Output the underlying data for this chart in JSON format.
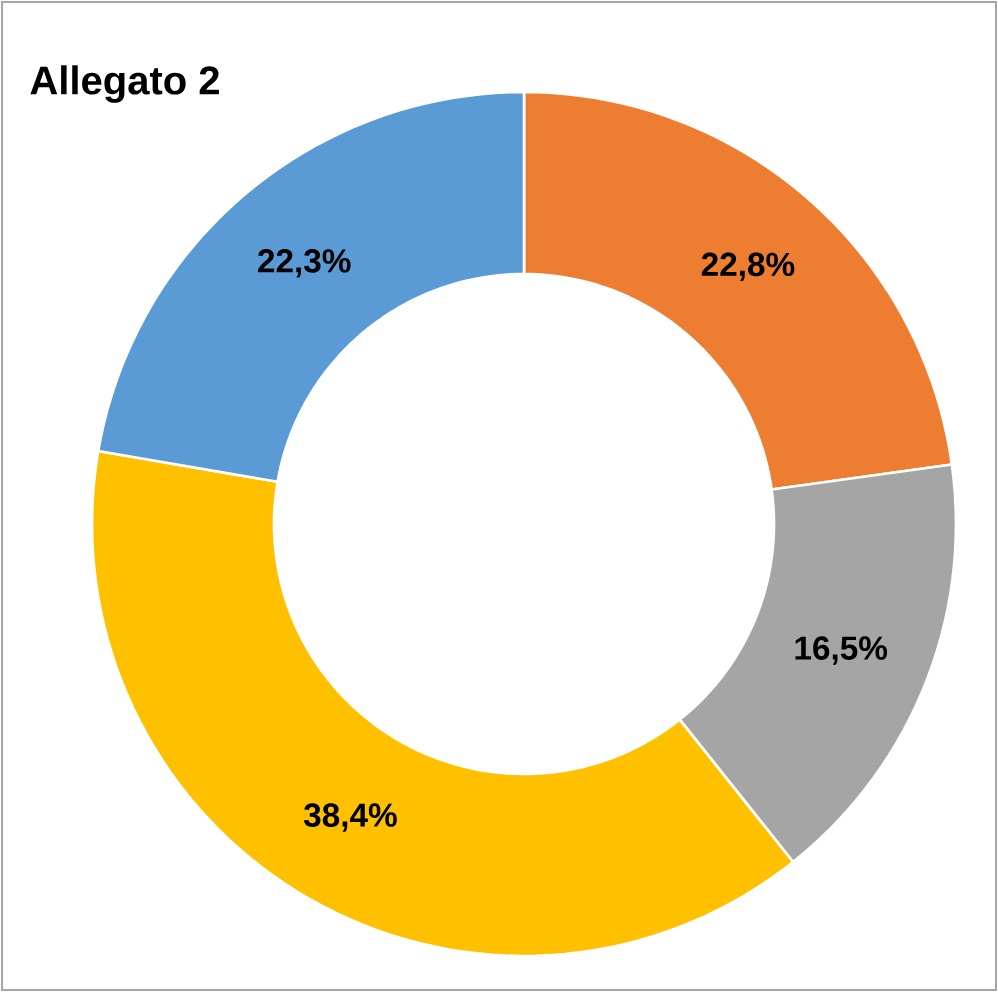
{
  "chart_data": {
    "type": "donut",
    "title": "Allegato 2",
    "categories": [
      null,
      null,
      null,
      null
    ],
    "values": [
      22.8,
      16.5,
      38.4,
      22.3
    ],
    "colors": [
      "#ed7d31",
      "#a5a5a5",
      "#ffc000",
      "#5b9bd5"
    ],
    "value_labels": [
      "22,8%",
      "16,5%",
      "38,4%",
      "22,3%"
    ]
  }
}
